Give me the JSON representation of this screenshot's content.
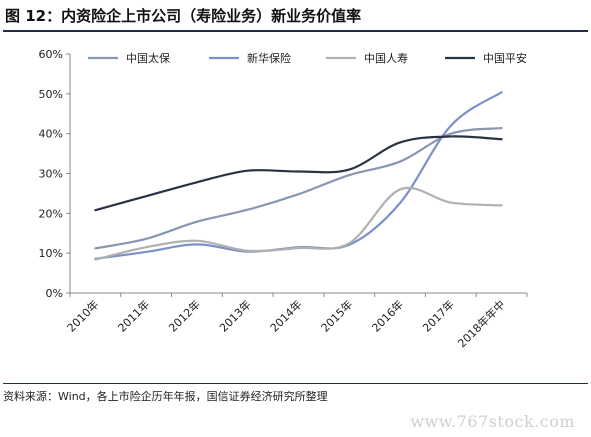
{
  "header": {
    "title": "图 12：内资险企上市公司（寿险业务）新业务价值率"
  },
  "footer": {
    "source": "资料来源：Wind，各上市险企历年年报，国信证券经济研究所整理",
    "watermark": "www.767stock.com"
  },
  "chart_data": {
    "type": "line",
    "title": "",
    "xlabel": "",
    "ylabel": "",
    "ylim": [
      0,
      60
    ],
    "y_ticks": [
      "0%",
      "10%",
      "20%",
      "30%",
      "40%",
      "50%",
      "60%"
    ],
    "categories": [
      "2010年",
      "2011年",
      "2012年",
      "2013年",
      "2014年",
      "2015年",
      "2016年",
      "2017年",
      "2018年年中"
    ],
    "legend_position": "top",
    "grid": false,
    "series": [
      {
        "name": "中国太保",
        "color": "#8796b4",
        "values": [
          11.2,
          13.6,
          17.9,
          20.9,
          24.8,
          29.6,
          33.0,
          40.0,
          41.4
        ]
      },
      {
        "name": "新华保险",
        "color": "#7b90c8",
        "values": [
          8.6,
          10.3,
          12.2,
          10.4,
          11.5,
          12.1,
          22.6,
          42.0,
          50.4
        ]
      },
      {
        "name": "中国人寿",
        "color": "#b1b1b1",
        "values": [
          8.4,
          11.5,
          13.1,
          10.6,
          11.3,
          12.5,
          26.0,
          22.7,
          22.0
        ]
      },
      {
        "name": "中国平安",
        "color": "#2a3344",
        "values": [
          20.8,
          24.3,
          27.8,
          30.7,
          30.5,
          31.0,
          37.8,
          39.3,
          38.6
        ]
      }
    ]
  }
}
